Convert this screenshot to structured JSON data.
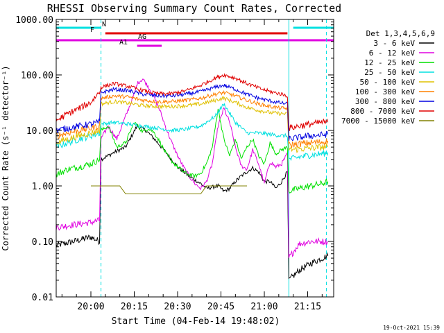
{
  "chart_data": {
    "type": "line",
    "title": "RHESSI Observing Summary Count Rates, Corrected",
    "xlabel": "Start Time (04-Feb-14 19:48:02)",
    "ylabel": "Corrected Count Rate (s⁻¹ detector⁻¹)",
    "yscale": "log",
    "ylim": [
      0.01,
      1000
    ],
    "xlim_minutes_after_1948": [
      0,
      96
    ],
    "x_tick_labels": [
      "20:00",
      "20:15",
      "20:30",
      "20:45",
      "21:00",
      "21:15"
    ],
    "x_tick_minutes": [
      12,
      27,
      42,
      57,
      72,
      87
    ],
    "y_tick_labels": [
      "1000.00",
      "100.00",
      "10.00",
      "1.00",
      "0.10",
      "0.01"
    ],
    "y_tick_values": [
      1000,
      100,
      10,
      1,
      0.1,
      0.01
    ],
    "legend_title": "Det 1,3,4,5,6,9",
    "legend_position": "right",
    "timestamp": "19-Oct-2021 15:39",
    "flag_bars": [
      {
        "label": "N",
        "color": "#00e0e0",
        "segments": [
          [
            0,
            15.5
          ],
          [
            82,
            96
          ]
        ]
      },
      {
        "label": "F",
        "color": "#e00000",
        "segments": [
          [
            17,
            80
          ]
        ]
      },
      {
        "label": "AG",
        "color": "#e000e0",
        "segments": [
          [
            0,
            96
          ]
        ]
      },
      {
        "label": "A1",
        "color": "#e000e0",
        "segments": [
          [
            28,
            36.5
          ]
        ]
      }
    ],
    "vlines": [
      {
        "minute": 0,
        "style": "solid",
        "color": "#00e0e0"
      },
      {
        "minute": 15.5,
        "style": "dashed",
        "color": "#00e0e0"
      },
      {
        "minute": 80.5,
        "style": "solid",
        "color": "#00e0e0"
      },
      {
        "minute": 93.5,
        "style": "dashed",
        "color": "#00e0e0"
      }
    ],
    "series": [
      {
        "name": "3 - 6 keV",
        "color": "#000000",
        "x": [
          0,
          6,
          12,
          15,
          15.5,
          20,
          24,
          28,
          31,
          34,
          38,
          42,
          46,
          50,
          52,
          54,
          56,
          58,
          60,
          62,
          64,
          66,
          68,
          70,
          72,
          74,
          76,
          78,
          80,
          80.5,
          84,
          88,
          92,
          94
        ],
        "y": [
          0.085,
          0.1,
          0.12,
          0.1,
          3,
          4,
          5,
          12,
          10,
          7,
          4,
          2.2,
          1.5,
          1.1,
          0.9,
          0.95,
          1.0,
          0.8,
          0.9,
          1.2,
          1.5,
          1.8,
          2.1,
          1.8,
          1.2,
          1.2,
          0.9,
          1.2,
          1.8,
          0.02,
          0.03,
          0.04,
          0.05,
          0.055
        ]
      },
      {
        "name": "6 - 12 keV",
        "color": "#e000e0",
        "x": [
          0,
          6,
          12,
          15,
          15.5,
          18,
          21,
          24,
          27,
          28,
          30,
          32,
          34,
          36,
          38,
          40,
          42,
          44,
          46,
          48,
          50,
          52,
          54,
          56,
          58,
          60,
          62,
          64,
          66,
          68,
          70,
          72,
          74,
          76,
          78,
          80,
          80.5,
          84,
          88,
          92,
          94
        ],
        "y": [
          0.18,
          0.2,
          0.22,
          0.24,
          7,
          12,
          7,
          18,
          45,
          70,
          85,
          60,
          38,
          22,
          11,
          6,
          3.5,
          2.2,
          1.5,
          1.1,
          0.9,
          1.2,
          2.5,
          12,
          25,
          14,
          5,
          2.3,
          2.0,
          4.5,
          2.5,
          1.1,
          2.7,
          2.2,
          2.5,
          3.8,
          0.05,
          0.09,
          0.1,
          0.1,
          0.1
        ]
      },
      {
        "name": "12 - 25 keV",
        "color": "#00e000",
        "x": [
          0,
          4,
          8,
          12,
          15,
          15.5,
          18,
          21,
          24,
          27,
          30,
          32,
          34,
          36,
          38,
          40,
          42,
          44,
          46,
          48,
          50,
          52,
          54,
          56,
          58,
          60,
          62,
          64,
          66,
          68,
          70,
          72,
          74,
          76,
          78,
          80,
          80.5,
          84,
          88,
          92,
          94
        ],
        "y": [
          1.6,
          2.0,
          2.2,
          2.5,
          3.0,
          10,
          12,
          5,
          6,
          14,
          9.5,
          11,
          9,
          6,
          3.8,
          2.8,
          2.2,
          1.8,
          1.6,
          1.5,
          1.7,
          2.5,
          5,
          25,
          7,
          3.5,
          7,
          3.1,
          5,
          7,
          3.5,
          2.5,
          6,
          3.8,
          4.5,
          5,
          0.8,
          0.9,
          1.0,
          1.1,
          1.2
        ]
      },
      {
        "name": "25 - 50 keV",
        "color": "#00e0e0",
        "x": [
          0,
          4,
          8,
          12,
          15,
          15.5,
          20,
          25,
          30,
          35,
          40,
          45,
          50,
          55,
          58,
          62,
          66,
          70,
          74,
          78,
          80,
          80.5,
          84,
          88,
          92,
          94
        ],
        "y": [
          5,
          6,
          7,
          8,
          9,
          13,
          14,
          13,
          12,
          11,
          10,
          10.5,
          12,
          18,
          30,
          14,
          9,
          9,
          8.5,
          8,
          8,
          3,
          3.3,
          3.6,
          3.8,
          4
        ]
      },
      {
        "name": "50 - 100 keV",
        "color": "#e0c000",
        "x": [
          0,
          4,
          8,
          12,
          15,
          15.5,
          20,
          25,
          30,
          35,
          40,
          45,
          50,
          55,
          58,
          62,
          66,
          70,
          74,
          78,
          80,
          80.5,
          84,
          88,
          92,
          94
        ],
        "y": [
          6,
          7,
          8,
          9,
          10,
          30,
          33,
          31,
          28,
          27,
          27,
          28,
          30,
          35,
          38,
          32,
          26,
          23,
          21,
          20,
          20,
          4.5,
          4.6,
          4.8,
          5,
          5
        ]
      },
      {
        "name": "100 - 300 keV",
        "color": "#ff8000",
        "x": [
          0,
          4,
          8,
          12,
          15,
          15.5,
          20,
          25,
          30,
          35,
          40,
          45,
          50,
          55,
          58,
          62,
          66,
          70,
          74,
          78,
          80,
          80.5,
          84,
          88,
          92,
          94
        ],
        "y": [
          8,
          9,
          10,
          11,
          12,
          38,
          42,
          40,
          35,
          33,
          33,
          35,
          38,
          45,
          48,
          42,
          35,
          30,
          27,
          25,
          25,
          5.5,
          5.7,
          6,
          6.2,
          6.5
        ]
      },
      {
        "name": "300 - 800 keV",
        "color": "#0000e0",
        "x": [
          0,
          4,
          8,
          12,
          15,
          15.5,
          20,
          25,
          30,
          35,
          40,
          45,
          50,
          55,
          58,
          62,
          66,
          70,
          74,
          78,
          80,
          80.5,
          84,
          88,
          92,
          94
        ],
        "y": [
          10,
          11,
          12,
          13,
          14,
          48,
          55,
          52,
          45,
          42,
          42,
          45,
          50,
          60,
          65,
          55,
          45,
          38,
          34,
          31,
          30,
          7,
          7.5,
          8,
          8.3,
          8.5
        ]
      },
      {
        "name": "800 - 7000 keV",
        "color": "#e00000",
        "x": [
          0,
          4,
          8,
          12,
          15,
          15.5,
          20,
          25,
          30,
          35,
          40,
          45,
          50,
          55,
          58,
          62,
          66,
          70,
          74,
          78,
          80,
          80.5,
          84,
          88,
          92,
          94
        ],
        "y": [
          15,
          20,
          25,
          32,
          50,
          60,
          70,
          62,
          52,
          46,
          46,
          52,
          65,
          88,
          100,
          88,
          70,
          58,
          50,
          45,
          42,
          11,
          12,
          13,
          14,
          14
        ]
      },
      {
        "name": "7000 - 15000 keV",
        "color": "#808000",
        "x": [
          12,
          14,
          16,
          18,
          20,
          22,
          24,
          26,
          30,
          34,
          38,
          42,
          46,
          50,
          52,
          54,
          56,
          58,
          60,
          62,
          64,
          66
        ],
        "y": [
          1.0,
          1.0,
          1.0,
          1.0,
          1.0,
          1.0,
          0.72,
          0.72,
          0.72,
          0.72,
          0.72,
          0.72,
          0.72,
          0.72,
          1.0,
          1.0,
          1.0,
          1.0,
          1.0,
          1.0,
          1.0,
          1.0
        ]
      }
    ]
  }
}
